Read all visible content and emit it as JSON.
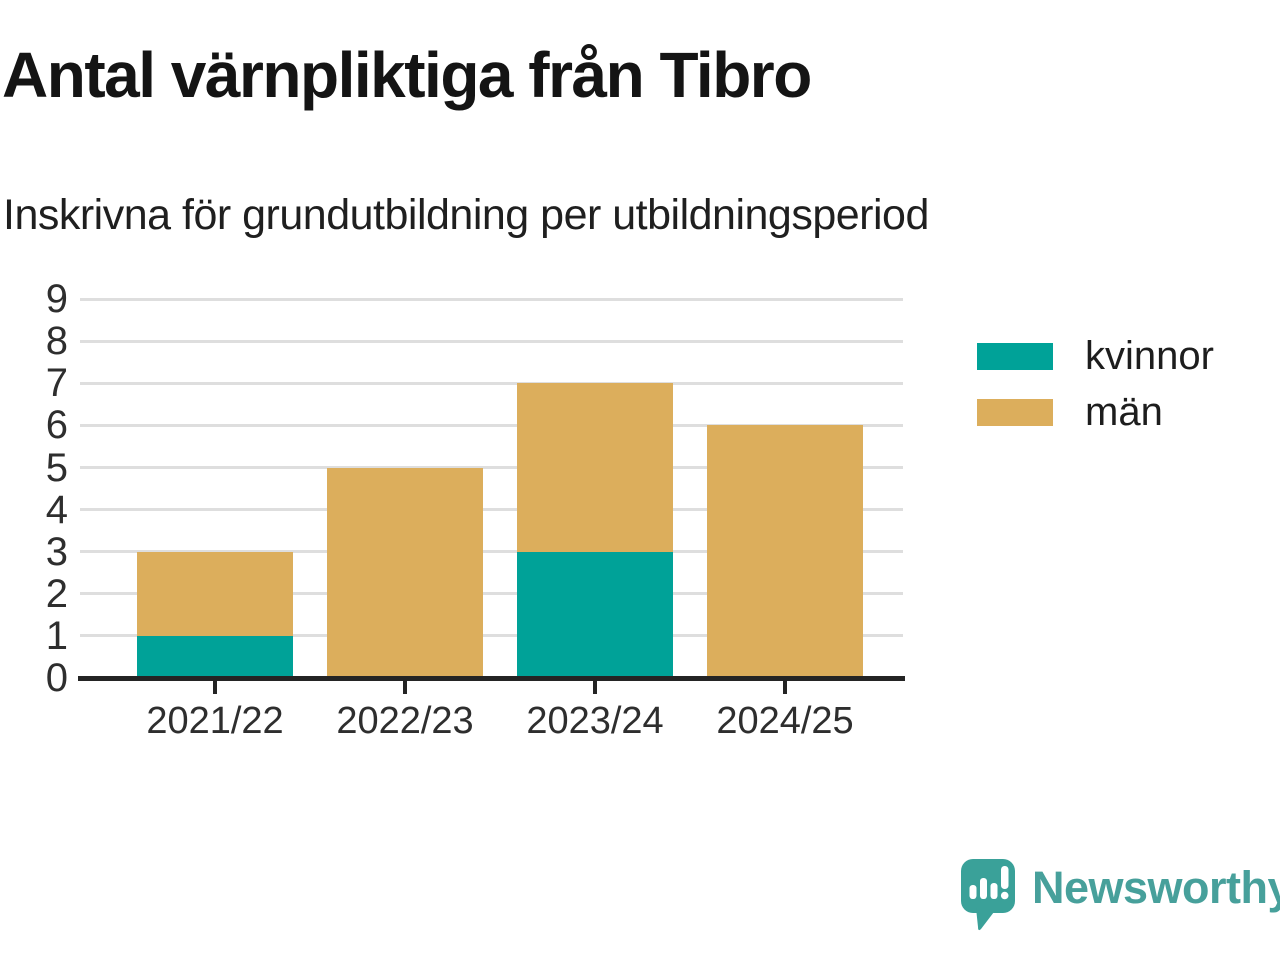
{
  "header": {
    "title": "Antal värnpliktiga från Tibro",
    "subtitle": "Inskrivna för grundutbildning per utbildningsperiod"
  },
  "legend": {
    "items": [
      {
        "label": "kvinnor",
        "color": "#00a298"
      },
      {
        "label": "män",
        "color": "#dcae5c"
      }
    ]
  },
  "branding": {
    "name": "Newsworthy",
    "wordmark_color": "#47a09b",
    "icon_color": "#3aa199",
    "icon": "newsworthy-speech-bubble-barchart-icon"
  },
  "chart_data": {
    "type": "bar",
    "stacked": true,
    "title": "Antal värnpliktiga från Tibro",
    "subtitle": "Inskrivna för grundutbildning per utbildningsperiod",
    "categories": [
      "2021/22",
      "2022/23",
      "2023/24",
      "2024/25"
    ],
    "series": [
      {
        "name": "kvinnor",
        "color": "#00a298",
        "values": [
          1,
          0,
          3,
          0
        ]
      },
      {
        "name": "män",
        "color": "#dcae5c",
        "values": [
          2,
          5,
          4,
          6
        ]
      }
    ],
    "totals": [
      3,
      5,
      7,
      6
    ],
    "xlabel": "",
    "ylabel": "",
    "ylim": [
      0,
      9
    ],
    "yticks": [
      0,
      1,
      2,
      3,
      4,
      5,
      6,
      7,
      8,
      9
    ],
    "grid": true,
    "grid_color": "#dedede",
    "axis_color": "#242424",
    "tick_label_color": "#2e2e2e",
    "legend_position": "right"
  }
}
